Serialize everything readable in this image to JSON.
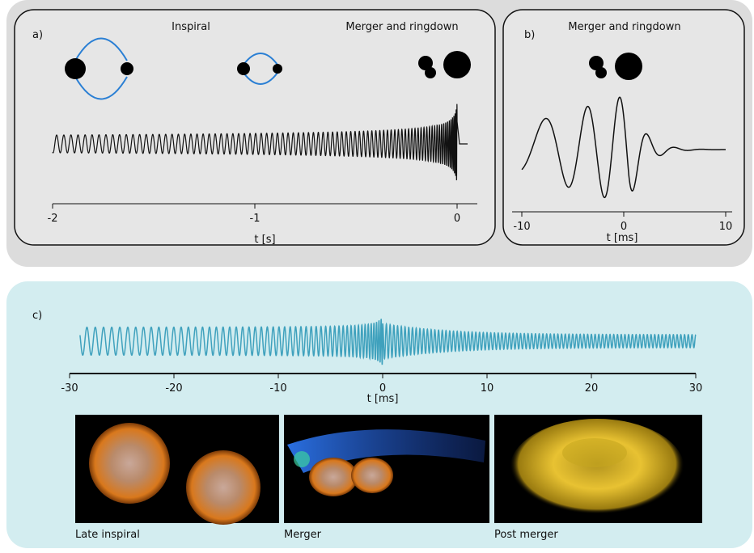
{
  "panels": [
    {
      "label": "a)",
      "titles": [
        "Inspiral",
        "Merger and ringdown"
      ],
      "x_label": "t [s]",
      "xlim": [
        -2,
        0.1
      ],
      "xticks": [
        -2,
        -1,
        0
      ]
    },
    {
      "label": "b)",
      "titles": [
        "Merger and ringdown"
      ],
      "x_label": "t [ms]",
      "xlim": [
        -10,
        10
      ],
      "xticks": [
        -10,
        0,
        10
      ]
    },
    {
      "label": "c)",
      "titles": [],
      "x_label": "t [ms]",
      "xlim": [
        -30,
        30
      ],
      "xticks": [
        -30,
        -20,
        -10,
        0,
        10,
        20,
        30
      ],
      "images": [
        "Late inspiral",
        "Merger",
        "Post merger"
      ]
    }
  ]
}
